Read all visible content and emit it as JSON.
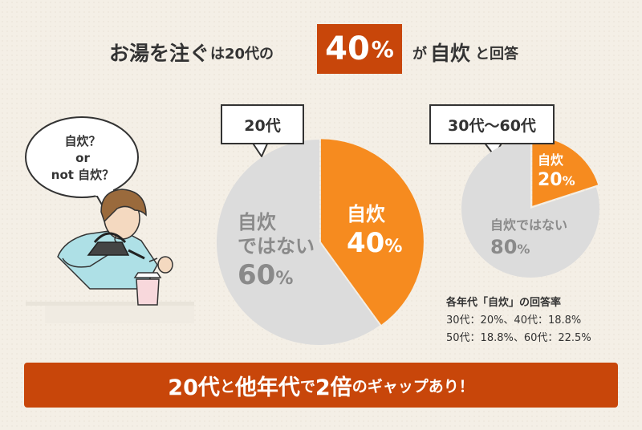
{
  "headline": {
    "part1": "お湯を注ぐ",
    "part2": "は20代の",
    "highlight_num": "40",
    "highlight_unit": "%",
    "part3": "が自炊",
    "part4": "と回答"
  },
  "speech_bubble": {
    "line1": "自炊？",
    "line2": "or",
    "line3": "not 自炊？"
  },
  "chart_data": [
    {
      "type": "pie",
      "title": "20代",
      "categories": [
        "自炊",
        "自炊ではない"
      ],
      "values": [
        40,
        60
      ],
      "labels": [
        {
          "text": "自炊",
          "value": "40",
          "unit": "%"
        },
        {
          "text1": "自炊",
          "text2": "ではない",
          "value": "60",
          "unit": "%"
        }
      ]
    },
    {
      "type": "pie",
      "title": "30代～60代",
      "categories": [
        "自炊",
        "自炊ではない"
      ],
      "values": [
        20,
        80
      ],
      "labels": [
        {
          "text": "自炊",
          "value": "20",
          "unit": "%"
        },
        {
          "text": "自炊ではない",
          "value": "80",
          "unit": "%"
        }
      ]
    }
  ],
  "colors": {
    "accent": "#c8460a",
    "self_cook": "#f68b1f",
    "not_self_cook": "#dcdcdc"
  },
  "note": {
    "heading": "各年代「自炊」の回答率",
    "line1": "30代：20%、40代：18.8%",
    "line2": "50代：18.8%、60代：22.5%"
  },
  "footer": {
    "p1": "20代",
    "p2": "と",
    "p3": "他年代",
    "p4": "で",
    "p5": "2倍",
    "p6": "のギャップあり！"
  }
}
